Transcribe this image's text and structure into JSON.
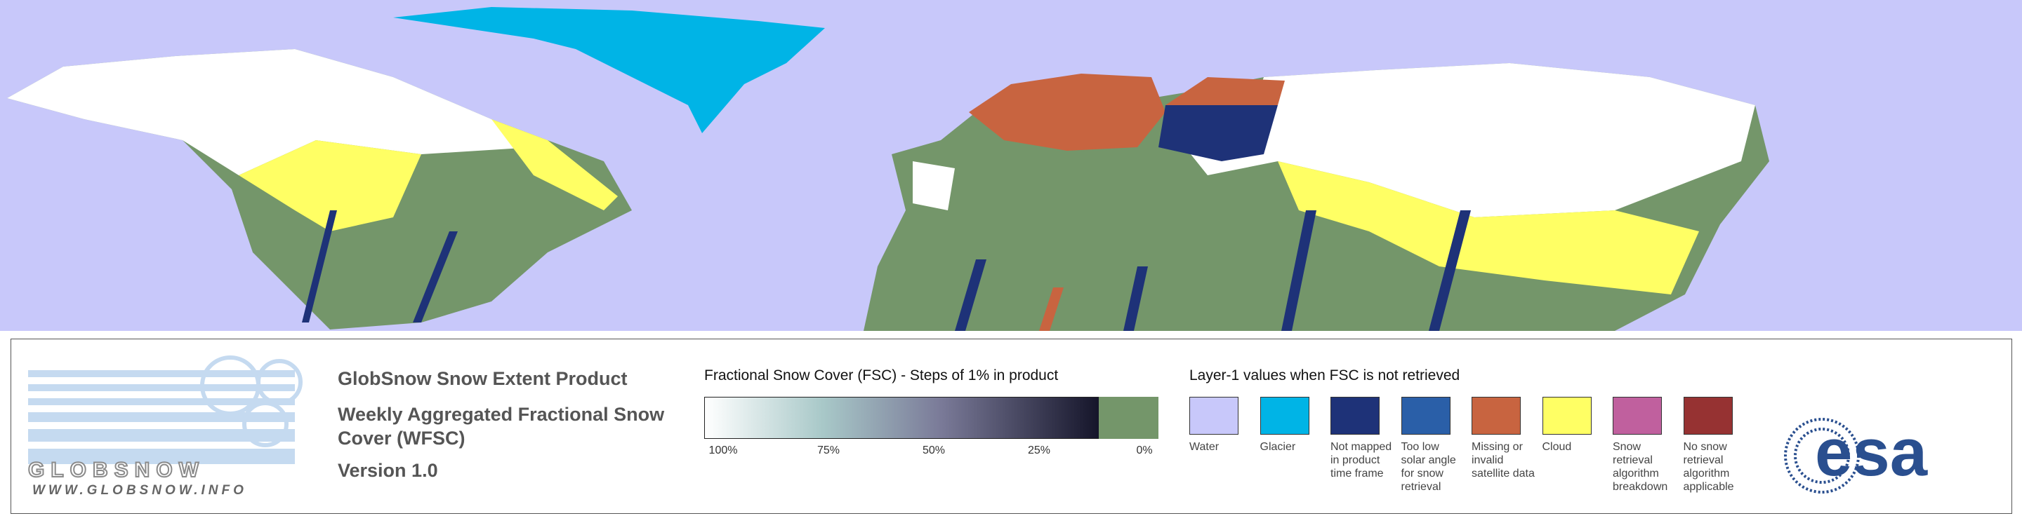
{
  "header": {
    "title": "GlobSnow Snow Extent Product",
    "subtitle": "Weekly Aggregated Fractional Snow Cover (WFSC)",
    "version": "Version 1.0"
  },
  "logo": {
    "name": "GLOBSNOW",
    "url": "WWW.GLOBSNOW.INFO",
    "agency": "esa"
  },
  "fsc_legend": {
    "title": "Fractional Snow Cover (FSC) - Steps of 1% in product",
    "ticks": [
      {
        "value": 100,
        "label": "100%"
      },
      {
        "value": 75,
        "label": "75%"
      },
      {
        "value": 50,
        "label": "50%"
      },
      {
        "value": 25,
        "label": "25%"
      },
      {
        "value": 0,
        "label": "0%"
      }
    ]
  },
  "layer1_legend": {
    "title": "Layer-1 values when FSC is not retrieved",
    "items": [
      {
        "label": "Water",
        "color": "#c8c8fa"
      },
      {
        "label": "Glacier",
        "color": "#00b4e6"
      },
      {
        "label": "Not mapped in product time frame",
        "color": "#1e3278"
      },
      {
        "label": "Too low solar angle for snow retrieval",
        "color": "#2a5fa8"
      },
      {
        "label": "Missing or invalid satellite data",
        "color": "#c86440"
      },
      {
        "label": "Cloud",
        "color": "#ffff64"
      },
      {
        "label": "Snow retrieval algorithm breakdown",
        "color": "#c0609e"
      },
      {
        "label": "No snow retrieval algorithm applicable",
        "color": "#963232"
      }
    ]
  }
}
